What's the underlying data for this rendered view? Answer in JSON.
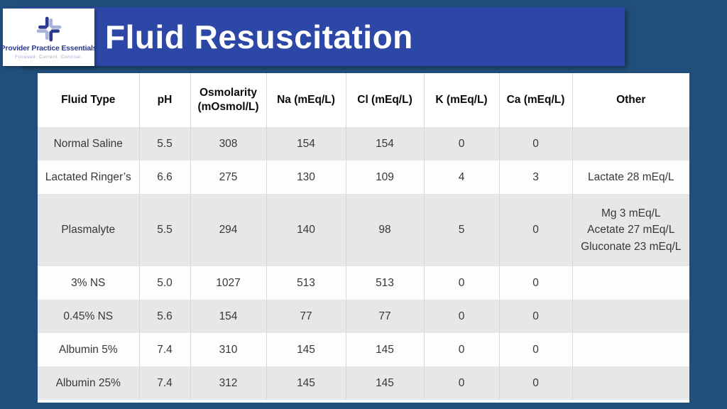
{
  "page": {
    "background_color": "#214F7C"
  },
  "banner": {
    "title": "Fluid Resuscitation",
    "background_color": "#2C47A6",
    "text_color": "#FFFFFF"
  },
  "logo": {
    "name": "Provider Practice Essentials",
    "tagline": "Focused.  Current.  Concise.",
    "icon": "puzzle-cross-icon",
    "dark_color": "#2B3A8F",
    "light_color": "#A9B2D8"
  },
  "table": {
    "header_background": "#FFFFFF",
    "alt_row_background": "#E6E7E9",
    "border_color": "#D7D8DA",
    "columns": [
      {
        "key": "fluid",
        "label": "Fluid Type"
      },
      {
        "key": "ph",
        "label": "pH"
      },
      {
        "key": "osmolarity",
        "label": "Osmolarity (mOsmol/L)"
      },
      {
        "key": "na",
        "label": "Na (mEq/L)"
      },
      {
        "key": "cl",
        "label": "Cl (mEq/L)"
      },
      {
        "key": "k",
        "label": "K (mEq/L)"
      },
      {
        "key": "ca",
        "label": "Ca (mEq/L)"
      },
      {
        "key": "other",
        "label": "Other"
      }
    ],
    "rows": [
      {
        "fluid": "Normal Saline",
        "ph": "5.5",
        "osmolarity": "308",
        "na": "154",
        "cl": "154",
        "k": "0",
        "ca": "0",
        "other": ""
      },
      {
        "fluid": "Lactated Ringer’s",
        "ph": "6.6",
        "osmolarity": "275",
        "na": "130",
        "cl": "109",
        "k": "4",
        "ca": "3",
        "other": "Lactate 28 mEq/L"
      },
      {
        "fluid": "Plasmalyte",
        "ph": "5.5",
        "osmolarity": "294",
        "na": "140",
        "cl": "98",
        "k": "5",
        "ca": "0",
        "other": "Mg 3 mEq/L\nAcetate 27 mEq/L\nGluconate 23 mEq/L"
      },
      {
        "fluid": "3% NS",
        "ph": "5.0",
        "osmolarity": "1027",
        "na": "513",
        "cl": "513",
        "k": "0",
        "ca": "0",
        "other": ""
      },
      {
        "fluid": "0.45% NS",
        "ph": "5.6",
        "osmolarity": "154",
        "na": "77",
        "cl": "77",
        "k": "0",
        "ca": "0",
        "other": ""
      },
      {
        "fluid": "Albumin 5%",
        "ph": "7.4",
        "osmolarity": "310",
        "na": "145",
        "cl": "145",
        "k": "0",
        "ca": "0",
        "other": ""
      },
      {
        "fluid": "Albumin 25%",
        "ph": "7.4",
        "osmolarity": "312",
        "na": "145",
        "cl": "145",
        "k": "0",
        "ca": "0",
        "other": ""
      }
    ]
  }
}
